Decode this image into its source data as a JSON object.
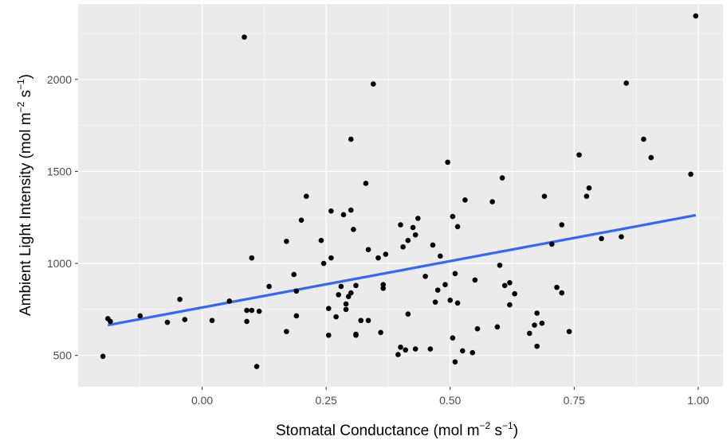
{
  "chart_data": {
    "type": "scatter",
    "xlabel": "Stomatal Conductance (mol m^-2 s^-1)",
    "ylabel": "Ambient Light Intensity (mol m^-2 s^-1)",
    "xlabel_parts": {
      "pre": "Stomatal Conductance (mol m",
      "sup1": "−2",
      "mid": " s",
      "sup2": "−1",
      "post": ")"
    },
    "ylabel_parts": {
      "pre": "Ambient Light Intensity (mol m",
      "sup1": "−2",
      "mid": " s",
      "sup2": "−1",
      "post": ")"
    },
    "xlim": [
      -0.25,
      1.05
    ],
    "ylim": [
      330,
      2410
    ],
    "x_ticks": [
      0.0,
      0.25,
      0.5,
      0.75,
      1.0
    ],
    "x_tick_labels": [
      "0.00",
      "0.25",
      "0.50",
      "0.75",
      "1.00"
    ],
    "y_ticks": [
      500,
      1000,
      1500,
      2000
    ],
    "y_tick_labels": [
      "500",
      "1000",
      "1500",
      "2000"
    ],
    "grid": true,
    "background": "#ebebeb",
    "point_color": "#000000",
    "trend_color": "#3366ff",
    "trend_line": {
      "x": [
        -0.19,
        0.995
      ],
      "y": [
        665,
        1262
      ]
    },
    "points": [
      {
        "x": -0.2,
        "y": 495
      },
      {
        "x": -0.19,
        "y": 700
      },
      {
        "x": -0.185,
        "y": 685
      },
      {
        "x": -0.125,
        "y": 715
      },
      {
        "x": -0.07,
        "y": 680
      },
      {
        "x": -0.045,
        "y": 805
      },
      {
        "x": -0.035,
        "y": 695
      },
      {
        "x": 0.02,
        "y": 690
      },
      {
        "x": 0.055,
        "y": 795
      },
      {
        "x": 0.085,
        "y": 2230
      },
      {
        "x": 0.09,
        "y": 685
      },
      {
        "x": 0.09,
        "y": 745
      },
      {
        "x": 0.1,
        "y": 745
      },
      {
        "x": 0.1,
        "y": 1030
      },
      {
        "x": 0.11,
        "y": 440
      },
      {
        "x": 0.115,
        "y": 740
      },
      {
        "x": 0.135,
        "y": 875
      },
      {
        "x": 0.17,
        "y": 630
      },
      {
        "x": 0.17,
        "y": 1120
      },
      {
        "x": 0.185,
        "y": 940
      },
      {
        "x": 0.19,
        "y": 715
      },
      {
        "x": 0.19,
        "y": 850
      },
      {
        "x": 0.2,
        "y": 1235
      },
      {
        "x": 0.21,
        "y": 1365
      },
      {
        "x": 0.24,
        "y": 1125
      },
      {
        "x": 0.245,
        "y": 1000
      },
      {
        "x": 0.255,
        "y": 610
      },
      {
        "x": 0.255,
        "y": 755
      },
      {
        "x": 0.26,
        "y": 1030
      },
      {
        "x": 0.26,
        "y": 1285
      },
      {
        "x": 0.27,
        "y": 710
      },
      {
        "x": 0.275,
        "y": 830
      },
      {
        "x": 0.28,
        "y": 875
      },
      {
        "x": 0.285,
        "y": 1265
      },
      {
        "x": 0.29,
        "y": 750
      },
      {
        "x": 0.29,
        "y": 780
      },
      {
        "x": 0.295,
        "y": 820
      },
      {
        "x": 0.3,
        "y": 840
      },
      {
        "x": 0.3,
        "y": 1290
      },
      {
        "x": 0.3,
        "y": 1675
      },
      {
        "x": 0.305,
        "y": 1185
      },
      {
        "x": 0.31,
        "y": 610
      },
      {
        "x": 0.31,
        "y": 615
      },
      {
        "x": 0.31,
        "y": 880
      },
      {
        "x": 0.32,
        "y": 690
      },
      {
        "x": 0.33,
        "y": 1435
      },
      {
        "x": 0.335,
        "y": 690
      },
      {
        "x": 0.335,
        "y": 1075
      },
      {
        "x": 0.345,
        "y": 1975
      },
      {
        "x": 0.355,
        "y": 1030
      },
      {
        "x": 0.36,
        "y": 625
      },
      {
        "x": 0.365,
        "y": 865
      },
      {
        "x": 0.365,
        "y": 885
      },
      {
        "x": 0.37,
        "y": 1050
      },
      {
        "x": 0.395,
        "y": 505
      },
      {
        "x": 0.4,
        "y": 545
      },
      {
        "x": 0.4,
        "y": 1210
      },
      {
        "x": 0.405,
        "y": 1090
      },
      {
        "x": 0.41,
        "y": 530
      },
      {
        "x": 0.415,
        "y": 1125
      },
      {
        "x": 0.415,
        "y": 725
      },
      {
        "x": 0.425,
        "y": 1195
      },
      {
        "x": 0.43,
        "y": 535
      },
      {
        "x": 0.43,
        "y": 1155
      },
      {
        "x": 0.435,
        "y": 1245
      },
      {
        "x": 0.45,
        "y": 930
      },
      {
        "x": 0.46,
        "y": 535
      },
      {
        "x": 0.465,
        "y": 1100
      },
      {
        "x": 0.47,
        "y": 790
      },
      {
        "x": 0.475,
        "y": 855
      },
      {
        "x": 0.48,
        "y": 1040
      },
      {
        "x": 0.49,
        "y": 885
      },
      {
        "x": 0.495,
        "y": 1550
      },
      {
        "x": 0.5,
        "y": 800
      },
      {
        "x": 0.505,
        "y": 1255
      },
      {
        "x": 0.505,
        "y": 595
      },
      {
        "x": 0.51,
        "y": 465
      },
      {
        "x": 0.51,
        "y": 945
      },
      {
        "x": 0.515,
        "y": 1200
      },
      {
        "x": 0.515,
        "y": 785
      },
      {
        "x": 0.525,
        "y": 525
      },
      {
        "x": 0.53,
        "y": 1345
      },
      {
        "x": 0.545,
        "y": 515
      },
      {
        "x": 0.55,
        "y": 910
      },
      {
        "x": 0.555,
        "y": 645
      },
      {
        "x": 0.585,
        "y": 1335
      },
      {
        "x": 0.595,
        "y": 655
      },
      {
        "x": 0.6,
        "y": 990
      },
      {
        "x": 0.605,
        "y": 1465
      },
      {
        "x": 0.61,
        "y": 880
      },
      {
        "x": 0.62,
        "y": 895
      },
      {
        "x": 0.62,
        "y": 775
      },
      {
        "x": 0.63,
        "y": 835
      },
      {
        "x": 0.66,
        "y": 620
      },
      {
        "x": 0.67,
        "y": 665
      },
      {
        "x": 0.675,
        "y": 550
      },
      {
        "x": 0.675,
        "y": 730
      },
      {
        "x": 0.685,
        "y": 675
      },
      {
        "x": 0.69,
        "y": 1365
      },
      {
        "x": 0.705,
        "y": 1105
      },
      {
        "x": 0.715,
        "y": 870
      },
      {
        "x": 0.725,
        "y": 840
      },
      {
        "x": 0.725,
        "y": 1210
      },
      {
        "x": 0.74,
        "y": 630
      },
      {
        "x": 0.76,
        "y": 1590
      },
      {
        "x": 0.775,
        "y": 1365
      },
      {
        "x": 0.78,
        "y": 1410
      },
      {
        "x": 0.805,
        "y": 1135
      },
      {
        "x": 0.845,
        "y": 1145
      },
      {
        "x": 0.855,
        "y": 1980
      },
      {
        "x": 0.89,
        "y": 1675
      },
      {
        "x": 0.905,
        "y": 1575
      },
      {
        "x": 0.985,
        "y": 1485
      },
      {
        "x": 0.995,
        "y": 2345
      }
    ]
  }
}
